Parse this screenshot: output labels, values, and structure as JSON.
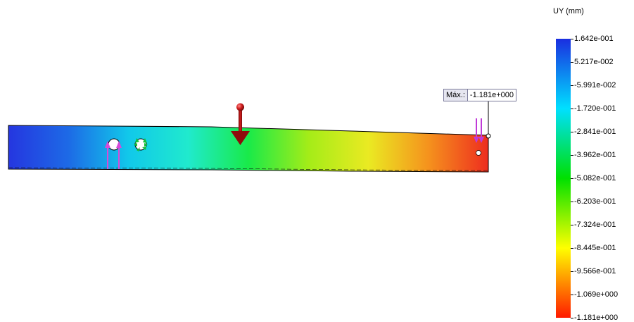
{
  "legend": {
    "title": "UY (mm)",
    "values": [
      "1.642e-001",
      "5.217e-002",
      "-5.991e-002",
      "-1.720e-001",
      "-2.841e-001",
      "-3.962e-001",
      "-5.082e-001",
      "-6.203e-001",
      "-7.324e-001",
      "-8.445e-001",
      "-9.566e-001",
      "-1.069e+000",
      "-1.181e+000"
    ],
    "colors": [
      "#1a2ee0",
      "#00e0ff",
      "#00e000",
      "#ffff00",
      "#ff1a00"
    ]
  },
  "max_probe": {
    "label": "Máx.:",
    "value": "-1.181e+000"
  },
  "model": {
    "beam_gradient": [
      "#2536e0",
      "#1d6ae6",
      "#11c8ea",
      "#20eacd",
      "#19ea49",
      "#a4ec18",
      "#eaea22",
      "#f5921d",
      "#ee2d1f"
    ],
    "load_arrow_color": "#b21212",
    "support_arrow_color": "#d84ad8",
    "fixture_color": "#12c238"
  }
}
